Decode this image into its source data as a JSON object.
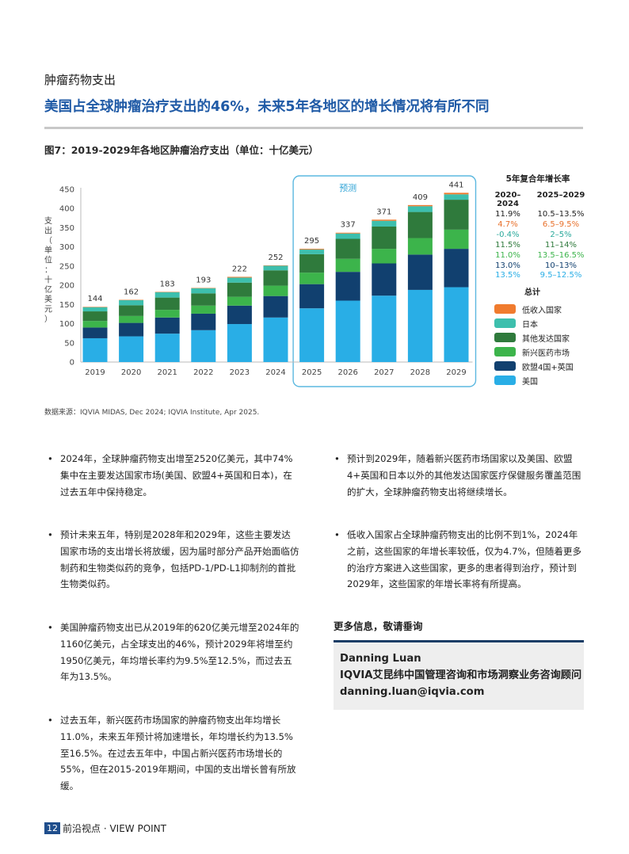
{
  "header": {
    "section": "肿瘤药物支出",
    "headline": "美国占全球肿瘤治疗支出的46%，未来5年各地区的增长情况将有所不同"
  },
  "figure": {
    "title": "图7：2019-2029年各地区肿瘤治疗支出（单位：十亿美元）",
    "source": "数据来源：IQVIA MIDAS, Dec 2024; IQVIA Institute, Apr 2025."
  },
  "chart_data": {
    "type": "bar",
    "stacked": true,
    "categories": [
      "2019",
      "2020",
      "2021",
      "2022",
      "2023",
      "2024",
      "2025",
      "2026",
      "2027",
      "2028",
      "2029"
    ],
    "totals": [
      "144",
      "162",
      "183",
      "193",
      "222",
      "252",
      "295",
      "337",
      "371",
      "409",
      "441"
    ],
    "ylabel": "支出（单位：十亿美元）",
    "ylim": [
      0,
      450
    ],
    "yticks": [
      "0",
      "50",
      "100",
      "150",
      "200",
      "250",
      "300",
      "350",
      "400",
      "450"
    ],
    "forecast_label": "预测",
    "forecast_start_index": 6,
    "series": [
      {
        "name": "美国",
        "color": "#29aee6",
        "values": [
          62,
          67,
          74,
          83,
          99,
          116,
          140,
          160,
          173,
          188,
          195
        ]
      },
      {
        "name": "欧盟4国+英国",
        "color": "#11406f",
        "values": [
          28,
          35,
          42,
          43,
          48,
          56,
          63,
          75,
          84,
          92,
          100
        ]
      },
      {
        "name": "新兴医药市场",
        "color": "#3cb44b",
        "values": [
          17,
          18,
          20,
          21,
          23,
          27,
          30,
          34,
          38,
          43,
          50
        ]
      },
      {
        "name": "其他发达国家",
        "color": "#2f7a3c",
        "values": [
          25,
          28,
          32,
          32,
          37,
          40,
          48,
          52,
          58,
          68,
          78
        ]
      },
      {
        "name": "日本",
        "color": "#3dbfad",
        "values": [
          11,
          13,
          14,
          13,
          13,
          12,
          12,
          14,
          15,
          15,
          14
        ]
      },
      {
        "name": "低收入国家",
        "color": "#f07b2e",
        "values": [
          1,
          1,
          1,
          1,
          2,
          1,
          2,
          2,
          3,
          3,
          4
        ]
      }
    ]
  },
  "cagr": {
    "title": "5年复合年增长率",
    "col1": "2020–2024",
    "col2": "2025–2029",
    "total_label": "总计",
    "rows": [
      {
        "a": "11.9%",
        "b": "10.5–13.5%",
        "color": "#222222"
      },
      {
        "a": "4.7%",
        "b": "6.5–9.5%",
        "color": "#e8702a"
      },
      {
        "a": "-0.4%",
        "b": "2–5%",
        "color": "#2aa99b"
      },
      {
        "a": "11.5%",
        "b": "11–14%",
        "color": "#2f7a3c"
      },
      {
        "a": "11.0%",
        "b": "13.5–16.5%",
        "color": "#3cb44b"
      },
      {
        "a": "13.0%",
        "b": "10–13%",
        "color": "#11406f"
      },
      {
        "a": "13.5%",
        "b": "9.5–12.5%",
        "color": "#29aee6"
      }
    ]
  },
  "legend": [
    {
      "name": "低收入国家",
      "color": "#f07b2e"
    },
    {
      "name": "日本",
      "color": "#3dbfad"
    },
    {
      "name": "其他发达国家",
      "color": "#2f7a3c"
    },
    {
      "name": "新兴医药市场",
      "color": "#3cb44b"
    },
    {
      "name": "欧盟4国+英国",
      "color": "#11406f"
    },
    {
      "name": "美国",
      "color": "#29aee6"
    }
  ],
  "bullets": [
    "2024年，全球肿瘤药物支出增至2520亿美元，其中74%集中在主要发达国家市场(美国、欧盟4+英国和日本)，在过去五年中保持稳定。",
    "预计未来五年，特别是2028年和2029年，这些主要发达国家市场的支出增长将放缓，因为届时部分产品开始面临仿制药和生物类似药的竞争，包括PD-1/PD-L1抑制剂的首批生物类似药。",
    "美国肿瘤药物支出已从2019年的620亿美元增至2024年的1160亿美元，占全球支出的46%，预计2029年将增至约1950亿美元，年均增长率约为9.5%至12.5%，而过去五年为13.5%。",
    "过去五年，新兴医药市场国家的肿瘤药物支出年均增长11.0%，未来五年预计将加速增长，年均增长约为13.5%至16.5%。在过去五年中，中国占新兴医药市场增长的55%，但在2015-2019年期间，中国的支出增长曾有所放缓。",
    "预计到2029年，随着新兴医药市场国家以及美国、欧盟4+英国和日本以外的其他发达国家医疗保健服务覆盖范围的扩大，全球肿瘤药物支出将继续增长。",
    "低收入国家占全球肿瘤药物支出的比例不到1%，2024年之前，这些国家的年增长率较低，仅为4.7%，但随着更多的治疗方案进入这些国家，更多的患者得到治疗，预计到2029年，这些国家的年增长率将有所提高。"
  ],
  "bullet_symbol": "•",
  "contact": {
    "title": "更多信息，敬请垂询",
    "name": "Danning Luan",
    "role": "IQVIA艾昆纬中国管理咨询和市场洞察业务咨询顾问",
    "email": "danning.luan@iqvia.com"
  },
  "footer": {
    "page": "12",
    "text": "前沿视点 · VIEW POINT"
  }
}
